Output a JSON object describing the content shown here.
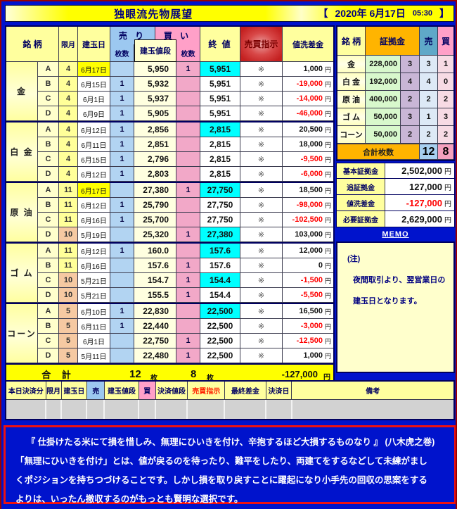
{
  "header": {
    "title": "独眼流先物展望",
    "bracket_open": "【",
    "bracket_close": "】",
    "date": "2020年  6月17日",
    "time": "05:30"
  },
  "colors": {
    "page_blue": "#0013cc",
    "header_yellow": "#ffff9e",
    "hl_yellow": "#ffff00",
    "close_cyan": "#00ffff",
    "neg_red": "#ff0000",
    "sell_blue": "#9cc8f0",
    "sell_blue_cell": "#b2d4f2",
    "buy_pink": "#ffa0c8",
    "buy_pink_cell": "#f2a8c8",
    "margin_orange": "#ffb400",
    "shiji_red": "#c42020"
  },
  "main_table": {
    "headers": {
      "meigara": "銘 柄",
      "gengetsu": "限月",
      "tategyokubi": "建玉日",
      "uri": "売 り",
      "kai": "買 い",
      "maisu": "枚数",
      "tategyoku_nedan": "建玉値段",
      "owarine": "終 値",
      "baibai_shiji": "売買指示",
      "nearai_sakin": "値洗差金"
    },
    "unit_yen": "円",
    "groups": [
      {
        "name": "金",
        "rows": [
          {
            "label": "A",
            "month": "4",
            "month_tone": "y",
            "date": "6月17日",
            "date_hl": true,
            "sell": "",
            "price": "5,950",
            "buy": "1",
            "close": "5,951",
            "close_hl": true,
            "shiji": "※",
            "pl": "1,000",
            "pl_neg": false
          },
          {
            "label": "B",
            "month": "4",
            "month_tone": "y",
            "date": "6月15日",
            "date_hl": false,
            "sell": "1",
            "price": "5,932",
            "buy": "",
            "close": "5,951",
            "close_hl": false,
            "shiji": "※",
            "pl": "-19,000",
            "pl_neg": true
          },
          {
            "label": "C",
            "month": "4",
            "month_tone": "y",
            "date": "6月1日",
            "date_hl": false,
            "sell": "1",
            "price": "5,937",
            "buy": "",
            "close": "5,951",
            "close_hl": false,
            "shiji": "※",
            "pl": "-14,000",
            "pl_neg": true
          },
          {
            "label": "D",
            "month": "4",
            "month_tone": "y",
            "date": "6月9日",
            "date_hl": false,
            "sell": "1",
            "price": "5,905",
            "buy": "",
            "close": "5,951",
            "close_hl": false,
            "shiji": "※",
            "pl": "-46,000",
            "pl_neg": true
          }
        ]
      },
      {
        "name": "白 金",
        "rows": [
          {
            "label": "A",
            "month": "4",
            "month_tone": "y",
            "date": "6月12日",
            "date_hl": false,
            "sell": "1",
            "price": "2,856",
            "buy": "",
            "close": "2,815",
            "close_hl": true,
            "shiji": "※",
            "pl": "20,500",
            "pl_neg": false
          },
          {
            "label": "B",
            "month": "4",
            "month_tone": "y",
            "date": "6月11日",
            "date_hl": false,
            "sell": "1",
            "price": "2,851",
            "buy": "",
            "close": "2,815",
            "close_hl": false,
            "shiji": "※",
            "pl": "18,000",
            "pl_neg": false
          },
          {
            "label": "C",
            "month": "4",
            "month_tone": "y",
            "date": "6月15日",
            "date_hl": false,
            "sell": "1",
            "price": "2,796",
            "buy": "",
            "close": "2,815",
            "close_hl": false,
            "shiji": "※",
            "pl": "-9,500",
            "pl_neg": true
          },
          {
            "label": "D",
            "month": "4",
            "month_tone": "y",
            "date": "6月12日",
            "date_hl": false,
            "sell": "1",
            "price": "2,803",
            "buy": "",
            "close": "2,815",
            "close_hl": false,
            "shiji": "※",
            "pl": "-6,000",
            "pl_neg": true
          }
        ]
      },
      {
        "name": "原 油",
        "rows": [
          {
            "label": "A",
            "month": "11",
            "month_tone": "y",
            "date": "6月17日",
            "date_hl": true,
            "sell": "",
            "price": "27,380",
            "buy": "1",
            "close": "27,750",
            "close_hl": true,
            "shiji": "※",
            "pl": "18,500",
            "pl_neg": false
          },
          {
            "label": "B",
            "month": "11",
            "month_tone": "y",
            "date": "6月12日",
            "date_hl": false,
            "sell": "1",
            "price": "25,790",
            "buy": "",
            "close": "27,750",
            "close_hl": false,
            "shiji": "※",
            "pl": "-98,000",
            "pl_neg": true
          },
          {
            "label": "C",
            "month": "11",
            "month_tone": "y",
            "date": "6月16日",
            "date_hl": false,
            "sell": "1",
            "price": "25,700",
            "buy": "",
            "close": "27,750",
            "close_hl": false,
            "shiji": "※",
            "pl": "-102,500",
            "pl_neg": true
          },
          {
            "label": "D",
            "month": "10",
            "month_tone": "p",
            "date": "5月19日",
            "date_hl": false,
            "sell": "",
            "price": "25,320",
            "buy": "1",
            "close": "27,380",
            "close_hl": true,
            "shiji": "※",
            "pl": "103,000",
            "pl_neg": false
          }
        ]
      },
      {
        "name": "ゴ ム",
        "rows": [
          {
            "label": "A",
            "month": "11",
            "month_tone": "y",
            "date": "6月12日",
            "date_hl": false,
            "sell": "1",
            "price": "160.0",
            "buy": "",
            "close": "157.6",
            "close_hl": true,
            "shiji": "※",
            "pl": "12,000",
            "pl_neg": false
          },
          {
            "label": "B",
            "month": "11",
            "month_tone": "y",
            "date": "6月16日",
            "date_hl": false,
            "sell": "",
            "price": "157.6",
            "buy": "1",
            "close": "157.6",
            "close_hl": false,
            "shiji": "※",
            "pl": "0",
            "pl_neg": false
          },
          {
            "label": "C",
            "month": "10",
            "month_tone": "p",
            "date": "5月21日",
            "date_hl": false,
            "sell": "",
            "price": "154.7",
            "buy": "1",
            "close": "154.4",
            "close_hl": true,
            "shiji": "※",
            "pl": "-1,500",
            "pl_neg": true
          },
          {
            "label": "D",
            "month": "10",
            "month_tone": "p",
            "date": "5月21日",
            "date_hl": false,
            "sell": "",
            "price": "155.5",
            "buy": "1",
            "close": "154.4",
            "close_hl": false,
            "shiji": "※",
            "pl": "-5,500",
            "pl_neg": true
          }
        ]
      },
      {
        "name": "コーン",
        "rows": [
          {
            "label": "A",
            "month": "5",
            "month_tone": "p",
            "date": "6月10日",
            "date_hl": false,
            "sell": "1",
            "price": "22,830",
            "buy": "",
            "close": "22,500",
            "close_hl": true,
            "shiji": "※",
            "pl": "16,500",
            "pl_neg": false
          },
          {
            "label": "B",
            "month": "5",
            "month_tone": "p",
            "date": "6月11日",
            "date_hl": false,
            "sell": "1",
            "price": "22,440",
            "buy": "",
            "close": "22,500",
            "close_hl": false,
            "shiji": "※",
            "pl": "-3,000",
            "pl_neg": true
          },
          {
            "label": "C",
            "month": "5",
            "month_tone": "p",
            "date": "6月1日",
            "date_hl": false,
            "sell": "",
            "price": "22,750",
            "buy": "1",
            "close": "22,500",
            "close_hl": false,
            "shiji": "※",
            "pl": "-12,500",
            "pl_neg": true
          },
          {
            "label": "D",
            "month": "5",
            "month_tone": "p",
            "date": "5月11日",
            "date_hl": false,
            "sell": "",
            "price": "22,480",
            "buy": "1",
            "close": "22,500",
            "close_hl": false,
            "shiji": "※",
            "pl": "1,000",
            "pl_neg": false
          }
        ]
      }
    ],
    "total": {
      "label": "合 計",
      "sell_total": "12",
      "buy_total": "8",
      "unit_mai": "枚",
      "pl_total": "-127,000",
      "unit_yen": "円"
    }
  },
  "margin_table": {
    "headers": {
      "meigara": "銘 柄",
      "shokokin": "証拠金",
      "sell": "売",
      "buy": "買"
    },
    "rows": [
      {
        "name": "金",
        "margin": "228,000",
        "lots": "3",
        "sell": "3",
        "buy": "1"
      },
      {
        "name": "白 金",
        "margin": "192,000",
        "lots": "4",
        "sell": "4",
        "buy": "0"
      },
      {
        "name": "原 油",
        "margin": "400,000",
        "lots": "2",
        "sell": "2",
        "buy": "2"
      },
      {
        "name": "ゴ ム",
        "margin": "50,000",
        "lots": "3",
        "sell": "1",
        "buy": "3"
      },
      {
        "name": "コーン",
        "margin": "50,000",
        "lots": "2",
        "sell": "2",
        "buy": "2"
      }
    ],
    "total_label": "合計枚数",
    "total_sell": "12",
    "total_buy": "8"
  },
  "summary": {
    "rows": [
      {
        "label": "基本証拠金",
        "value": "2,502,000",
        "neg": false
      },
      {
        "label": "追証拠金",
        "value": "127,000",
        "neg": false
      },
      {
        "label": "値洗差金",
        "value": "-127,000",
        "neg": true
      },
      {
        "label": "必要証拠金",
        "value": "2,629,000",
        "neg": false
      }
    ],
    "unit_yen": "円",
    "memo_label": "MEMO"
  },
  "note": {
    "title": "(注)",
    "line1": "夜間取引より、翌営業日の",
    "line2": "建玉日となります。"
  },
  "settlement_table": {
    "headers": [
      "本日決済分",
      "限月",
      "建玉日",
      "売",
      "建玉値段",
      "買",
      "決済値段",
      "売買指示",
      "最終差金",
      "決済日",
      "備考"
    ]
  },
  "quote": {
    "line1": "『 仕掛けたる米にて損を惜しみ、無理にひいきを付け、辛抱するほど大損するものなり 』 (八木虎之巻)",
    "line2": "「無理にひいきを付け」とは、値が戻るのを待ったり、難平をしたり、両建てをするなどして未練がまし",
    "line3": "くポジションを持ちつづけることです。しかし損を取り戻すことに躍起になり小手先の回収の思案をする",
    "line4": "よりは、いったん撤収するのがもっとも賢明な選択です。"
  }
}
